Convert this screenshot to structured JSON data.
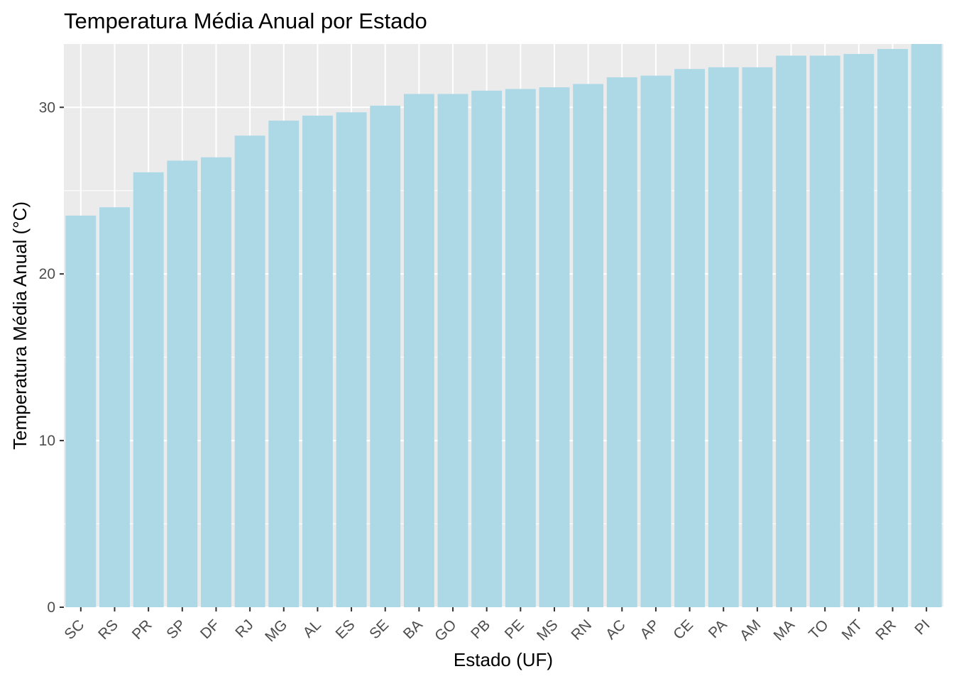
{
  "chart_data": {
    "type": "bar",
    "title": "Temperatura Média Anual por Estado",
    "xlabel": "Estado (UF)",
    "ylabel": "Temperatura Média Anual (°C)",
    "categories": [
      "SC",
      "RS",
      "PR",
      "SP",
      "DF",
      "RJ",
      "MG",
      "AL",
      "ES",
      "SE",
      "BA",
      "GO",
      "PB",
      "PE",
      "MS",
      "RN",
      "AC",
      "AP",
      "CE",
      "PA",
      "AM",
      "MA",
      "TO",
      "MT",
      "RR",
      "PI"
    ],
    "values": [
      23.5,
      24.0,
      26.1,
      26.8,
      27.0,
      28.3,
      29.2,
      29.5,
      29.7,
      30.1,
      30.8,
      30.8,
      31.0,
      31.1,
      31.2,
      31.4,
      31.8,
      31.9,
      32.3,
      32.4,
      32.4,
      33.1,
      33.1,
      33.2,
      33.5,
      33.8
    ],
    "yticks": [
      0,
      10,
      20,
      30
    ],
    "ylim": [
      0,
      33.8
    ],
    "bar_color": "#ADD8E6",
    "panel_color": "#EBEBEB",
    "grid": true
  }
}
